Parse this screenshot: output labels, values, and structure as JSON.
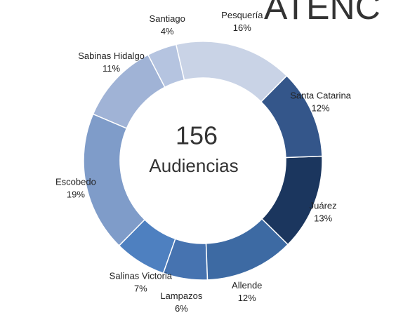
{
  "chart_data": {
    "type": "donut",
    "title": "ATENC",
    "center_value": "156",
    "center_label": "Audiencias",
    "categories": [
      "Pesquería",
      "Santa Catarina",
      "Juárez",
      "Allende",
      "Lampazos",
      "Salinas Victoria",
      "Escobedo",
      "Sabinas Hidalgo",
      "Santiago"
    ],
    "values": [
      16,
      12,
      13,
      12,
      6,
      7,
      19,
      11,
      4
    ],
    "value_labels": [
      "16%",
      "12%",
      "13%",
      "12%",
      "6%",
      "7%",
      "19%",
      "11%",
      "4%"
    ],
    "colors": [
      "#c9d3e6",
      "#34568a",
      "#1b365e",
      "#3d6aa3",
      "#4673b0",
      "#4e80c0",
      "#7f9cc9",
      "#a0b3d6",
      "#b5c4e0"
    ]
  }
}
